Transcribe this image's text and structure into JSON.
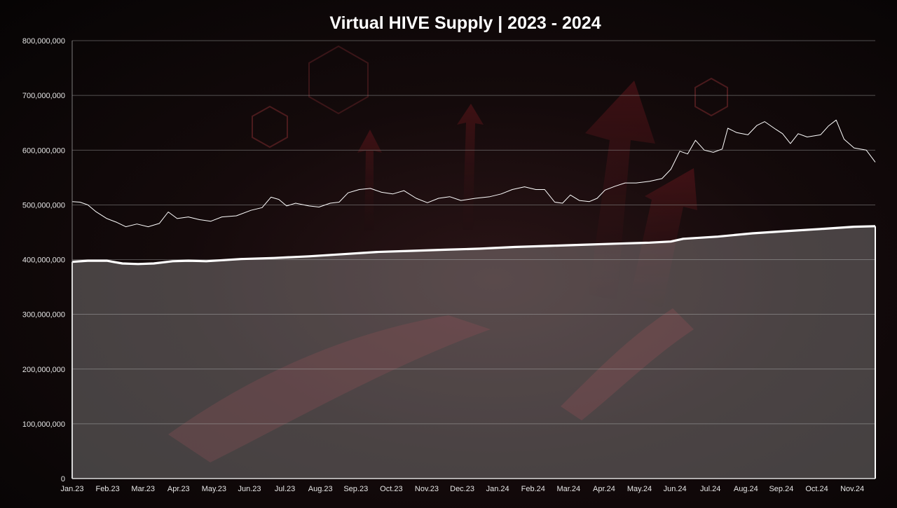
{
  "chart_data": {
    "type": "area",
    "title": "Virtual HIVE Supply | 2023 - 2024",
    "xlabel": "",
    "ylabel": "",
    "ylim": [
      0,
      800000000
    ],
    "y_ticks": [
      "0",
      "100,000,000",
      "200,000,000",
      "300,000,000",
      "400,000,000",
      "500,000,000",
      "600,000,000",
      "700,000,000",
      "800,000,000"
    ],
    "x_ticks": [
      "Jan.23",
      "Feb.23",
      "Mar.23",
      "Apr.23",
      "May.23",
      "Jun.23",
      "Jul.23",
      "Aug.23",
      "Sep.23",
      "Oct.23",
      "Nov.23",
      "Dec.23",
      "Jan.24",
      "Feb.24",
      "Mar.24",
      "Apr.24",
      "May.24",
      "Jun.24",
      "Jul.24",
      "Aug.24",
      "Sep.24",
      "Oct.24",
      "Nov.24"
    ],
    "grid": true,
    "legend": "none",
    "x_range": [
      "2023-01-01",
      "2024-12-20"
    ],
    "series": [
      {
        "type": "area",
        "color": "#ffffff",
        "points": [
          [
            "2023-01-01",
            396000000
          ],
          [
            "2023-01-15",
            398000000
          ],
          [
            "2023-02-01",
            398000000
          ],
          [
            "2023-02-15",
            393000000
          ],
          [
            "2023-03-01",
            392000000
          ],
          [
            "2023-03-15",
            393000000
          ],
          [
            "2023-04-01",
            397000000
          ],
          [
            "2023-04-15",
            398000000
          ],
          [
            "2023-05-01",
            397000000
          ],
          [
            "2023-06-01",
            401000000
          ],
          [
            "2023-07-01",
            403000000
          ],
          [
            "2023-08-01",
            406000000
          ],
          [
            "2023-09-01",
            410000000
          ],
          [
            "2023-10-01",
            414000000
          ],
          [
            "2023-11-01",
            416000000
          ],
          [
            "2023-12-01",
            418000000
          ],
          [
            "2024-01-01",
            420000000
          ],
          [
            "2024-02-01",
            423000000
          ],
          [
            "2024-03-01",
            425000000
          ],
          [
            "2024-04-01",
            427000000
          ],
          [
            "2024-05-01",
            429000000
          ],
          [
            "2024-06-01",
            431000000
          ],
          [
            "2024-06-20",
            433000000
          ],
          [
            "2024-07-01",
            438000000
          ],
          [
            "2024-08-01",
            442000000
          ],
          [
            "2024-09-01",
            448000000
          ],
          [
            "2024-10-01",
            452000000
          ],
          [
            "2024-11-01",
            456000000
          ],
          [
            "2024-12-01",
            460000000
          ],
          [
            "2024-12-20",
            461000000
          ]
        ]
      },
      {
        "type": "line",
        "color": "#ffffff",
        "points": [
          [
            "2023-01-01",
            506000000
          ],
          [
            "2023-01-08",
            505000000
          ],
          [
            "2023-01-15",
            500000000
          ],
          [
            "2023-01-22",
            488000000
          ],
          [
            "2023-02-01",
            475000000
          ],
          [
            "2023-02-10",
            468000000
          ],
          [
            "2023-02-18",
            460000000
          ],
          [
            "2023-02-28",
            465000000
          ],
          [
            "2023-03-10",
            460000000
          ],
          [
            "2023-03-20",
            466000000
          ],
          [
            "2023-03-28",
            487000000
          ],
          [
            "2023-04-05",
            475000000
          ],
          [
            "2023-04-15",
            478000000
          ],
          [
            "2023-04-25",
            473000000
          ],
          [
            "2023-05-05",
            470000000
          ],
          [
            "2023-05-15",
            478000000
          ],
          [
            "2023-05-28",
            480000000
          ],
          [
            "2023-06-10",
            490000000
          ],
          [
            "2023-06-20",
            495000000
          ],
          [
            "2023-06-28",
            514000000
          ],
          [
            "2023-07-05",
            510000000
          ],
          [
            "2023-07-12",
            498000000
          ],
          [
            "2023-07-20",
            503000000
          ],
          [
            "2023-08-01",
            498000000
          ],
          [
            "2023-08-10",
            496000000
          ],
          [
            "2023-08-20",
            503000000
          ],
          [
            "2023-08-28",
            505000000
          ],
          [
            "2023-09-05",
            522000000
          ],
          [
            "2023-09-15",
            528000000
          ],
          [
            "2023-09-25",
            530000000
          ],
          [
            "2023-10-05",
            523000000
          ],
          [
            "2023-10-15",
            520000000
          ],
          [
            "2023-10-25",
            526000000
          ],
          [
            "2023-11-05",
            512000000
          ],
          [
            "2023-11-15",
            504000000
          ],
          [
            "2023-11-25",
            512000000
          ],
          [
            "2023-12-05",
            515000000
          ],
          [
            "2023-12-15",
            508000000
          ],
          [
            "2023-12-28",
            512000000
          ],
          [
            "2024-01-10",
            515000000
          ],
          [
            "2024-01-20",
            520000000
          ],
          [
            "2024-01-30",
            528000000
          ],
          [
            "2024-02-10",
            533000000
          ],
          [
            "2024-02-20",
            528000000
          ],
          [
            "2024-02-28",
            528000000
          ],
          [
            "2024-03-08",
            505000000
          ],
          [
            "2024-03-15",
            503000000
          ],
          [
            "2024-03-22",
            518000000
          ],
          [
            "2024-03-30",
            508000000
          ],
          [
            "2024-04-08",
            506000000
          ],
          [
            "2024-04-15",
            512000000
          ],
          [
            "2024-04-22",
            527000000
          ],
          [
            "2024-05-01",
            534000000
          ],
          [
            "2024-05-10",
            540000000
          ],
          [
            "2024-05-20",
            540000000
          ],
          [
            "2024-06-01",
            543000000
          ],
          [
            "2024-06-12",
            548000000
          ],
          [
            "2024-06-20",
            565000000
          ],
          [
            "2024-06-28",
            598000000
          ],
          [
            "2024-07-05",
            593000000
          ],
          [
            "2024-07-12",
            618000000
          ],
          [
            "2024-07-20",
            600000000
          ],
          [
            "2024-07-28",
            596000000
          ],
          [
            "2024-08-05",
            602000000
          ],
          [
            "2024-08-10",
            640000000
          ],
          [
            "2024-08-18",
            632000000
          ],
          [
            "2024-08-28",
            628000000
          ],
          [
            "2024-09-05",
            645000000
          ],
          [
            "2024-09-12",
            652000000
          ],
          [
            "2024-09-22",
            638000000
          ],
          [
            "2024-09-28",
            630000000
          ],
          [
            "2024-10-05",
            612000000
          ],
          [
            "2024-10-12",
            630000000
          ],
          [
            "2024-10-20",
            624000000
          ],
          [
            "2024-11-01",
            628000000
          ],
          [
            "2024-11-08",
            644000000
          ],
          [
            "2024-11-15",
            655000000
          ],
          [
            "2024-11-22",
            620000000
          ],
          [
            "2024-12-01",
            604000000
          ],
          [
            "2024-12-12",
            600000000
          ],
          [
            "2024-12-20",
            578000000
          ]
        ]
      }
    ]
  },
  "colors": {
    "grid": "#8a8a8a",
    "area_fill": "#d9d9d9",
    "text": "#ffffff"
  }
}
